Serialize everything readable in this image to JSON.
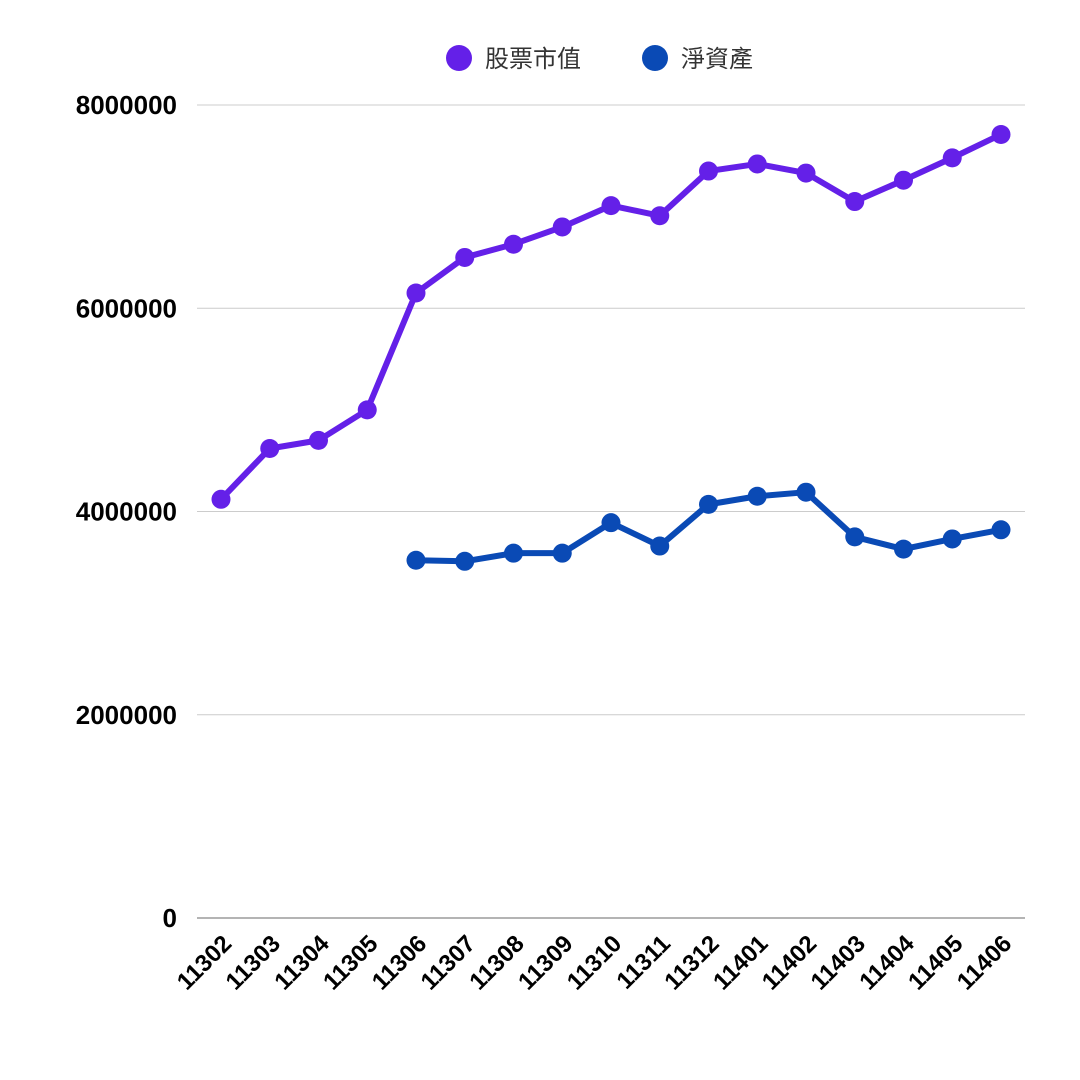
{
  "chart_data": {
    "type": "line",
    "categories": [
      "11302",
      "11303",
      "11304",
      "11305",
      "11306",
      "11307",
      "11308",
      "11309",
      "11310",
      "11311",
      "11312",
      "11401",
      "11402",
      "11403",
      "11404",
      "11405",
      "11406"
    ],
    "series": [
      {
        "name": "股票市值",
        "color": "#6420e8",
        "values": [
          4120000,
          4620000,
          4700000,
          5000000,
          6150000,
          6500000,
          6630000,
          6800000,
          7010000,
          6910000,
          7350000,
          7420000,
          7330000,
          7050000,
          7260000,
          7480000,
          7710000
        ]
      },
      {
        "name": "淨資產",
        "color": "#0a4ab5",
        "values": [
          null,
          null,
          null,
          null,
          3520000,
          3510000,
          3590000,
          3590000,
          3890000,
          3660000,
          4070000,
          4150000,
          4190000,
          3750000,
          3630000,
          3730000,
          3820000
        ]
      }
    ],
    "yticks": [
      "0",
      "2000000",
      "4000000",
      "6000000",
      "8000000"
    ],
    "ylim": [
      0,
      8000000
    ],
    "legend_position": "top-center",
    "grid": true
  }
}
